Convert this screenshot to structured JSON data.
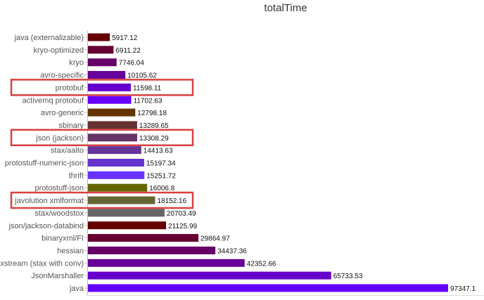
{
  "chart_data": {
    "type": "bar",
    "orientation": "horizontal",
    "title": "totalTime",
    "xlabel": "",
    "ylabel": "",
    "xlim": [
      0,
      97347.1
    ],
    "grid": false,
    "categories": [
      "java (externalizable)",
      "kryo-optimized",
      "kryo",
      "avro-specific",
      "protobuf",
      "activemq protobuf",
      "avro-generic",
      "sbinary",
      "json (jackson)",
      "stax/aalto",
      "protostuff-numeric-json",
      "thrift",
      "protostuff-json",
      "javolution xmlformat",
      "stax/woodstox",
      "json/jackson-databind",
      "binaryxml/FI",
      "hessian",
      "xstream (stax with conv)",
      "JsonMarshaller",
      "java"
    ],
    "values": [
      5917.12,
      6911.22,
      7746.04,
      10105.62,
      11598.11,
      11702.63,
      12798.18,
      13289.65,
      13308.29,
      14413.63,
      15197.34,
      15251.72,
      16006.8,
      18152.16,
      20703.49,
      21125.99,
      29864.97,
      34437.36,
      42352.66,
      65733.53,
      97347.1
    ],
    "value_labels": [
      "5917.12",
      "6911.22",
      "7746.04",
      "10105.62",
      "11598.11",
      "11702.63",
      "12798.18",
      "13289.65",
      "13308.29",
      "14413.63",
      "15197.34",
      "15251.72",
      "16006.8",
      "18152.16",
      "20703.49",
      "21125.99",
      "29864.97",
      "34437.36",
      "42352.66",
      "65733.53",
      "97347.1"
    ],
    "colors": [
      "#660000",
      "#660033",
      "#660066",
      "#660099",
      "#6600cc",
      "#6600ff",
      "#663300",
      "#663333",
      "#663366",
      "#663399",
      "#6633cc",
      "#6633ff",
      "#666600",
      "#666633",
      "#666666",
      "#660000",
      "#660033",
      "#660066",
      "#660099",
      "#6600cc",
      "#6600ff"
    ],
    "highlighted": [
      "protobuf",
      "json (jackson)",
      "javolution xmlformat"
    ],
    "highlight_color": "#d94040"
  }
}
